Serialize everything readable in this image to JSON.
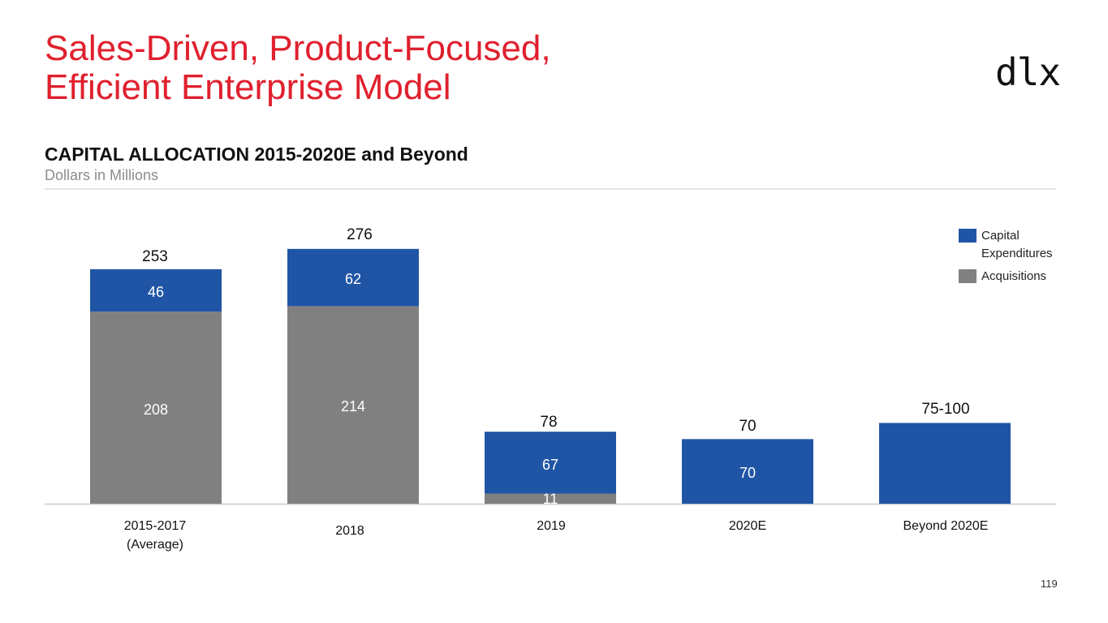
{
  "slide": {
    "title_line1": "Sales-Driven, Product-Focused,",
    "title_line2": "Efficient Enterprise Model",
    "logo": "dlx",
    "page_number": "119"
  },
  "colors": {
    "title": "#e0202e",
    "capex": "#2055a5",
    "acquisitions": "#808080"
  },
  "chart_data": {
    "type": "bar",
    "stacked": true,
    "title": "CAPITAL ALLOCATION 2015-2020E and Beyond",
    "subtitle": "Dollars in Millions",
    "xlabel": "",
    "ylabel": "",
    "ylim": [
      0,
      280
    ],
    "grid": false,
    "legend_position": "top-right",
    "categories": [
      [
        "2015-2017",
        "(Average)"
      ],
      [
        "2018"
      ],
      [
        "2019"
      ],
      [
        "2020E"
      ],
      [
        "Beyond 2020E"
      ]
    ],
    "series": [
      {
        "name": "Acquisitions",
        "color": "#808080",
        "values": [
          208,
          214,
          11,
          0,
          0
        ],
        "labels": [
          "208",
          "214",
          "11",
          "",
          ""
        ]
      },
      {
        "name": "Capital Expenditures",
        "color": "#2055a5",
        "values": [
          46,
          62,
          67,
          70,
          87.5
        ],
        "labels": [
          "46",
          "62",
          "67",
          "70",
          ""
        ]
      }
    ],
    "totals": [
      "253",
      "276",
      "78",
      "70",
      "75-100"
    ],
    "legend": [
      {
        "label_lines": [
          "Capital",
          "Expenditures"
        ],
        "color": "#2055a5"
      },
      {
        "label_lines": [
          "Acquisitions"
        ],
        "color": "#808080"
      }
    ]
  }
}
